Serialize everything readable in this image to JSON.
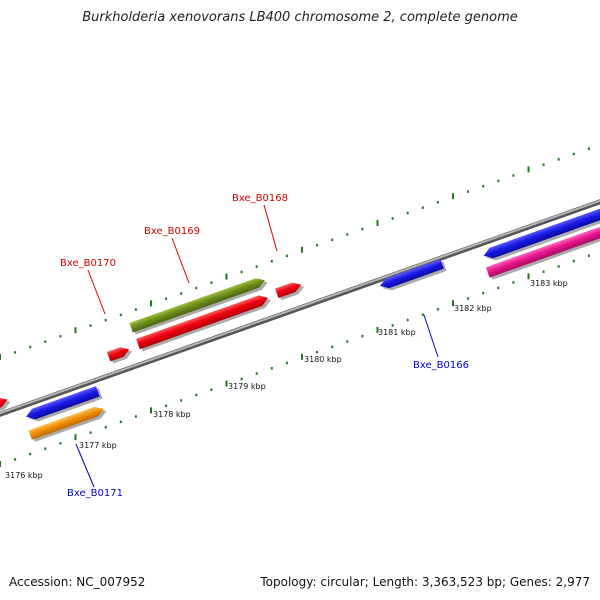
{
  "title": "Burkholderia xenovorans LB400 chromosome 2, complete genome",
  "footer": {
    "accession": "Accession: NC_007952",
    "summary": "Topology: circular; Length: 3,363,523 bp; Genes: 2,977"
  },
  "colors": {
    "backbone": "#8a8a8a",
    "tick": "#1f7a1f",
    "gene_red": "#e8001a",
    "gene_olive": "#6e8f1e",
    "gene_blue": "#1a1ae6",
    "gene_orange": "#f0900a",
    "gene_magenta": "#e8168c",
    "label_red": "#d40000",
    "label_blue": "#0000c8"
  },
  "scale_labels": [
    "3176 kbp",
    "3177 kbp",
    "3178 kbp",
    "3179 kbp",
    "3180 kbp",
    "3181 kbp",
    "3182 kbp",
    "3183 kbp"
  ],
  "gene_labels": [
    {
      "name": "Bxe_B0168",
      "color": "red"
    },
    {
      "name": "Bxe_B0169",
      "color": "red"
    },
    {
      "name": "Bxe_B0170",
      "color": "red"
    },
    {
      "name": "Bxe_B0166",
      "color": "blue"
    },
    {
      "name": "Bxe_B0171",
      "color": "blue"
    }
  ]
}
